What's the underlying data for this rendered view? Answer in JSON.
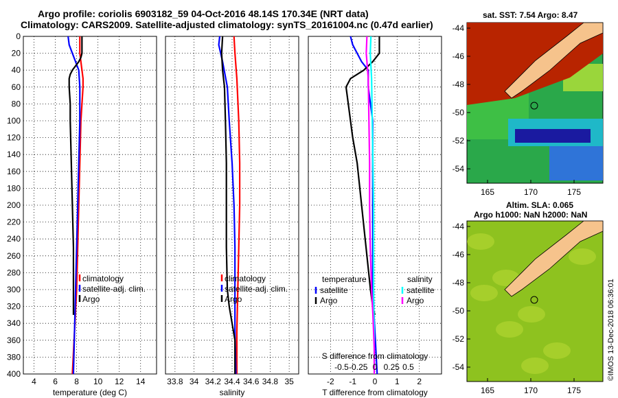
{
  "header": {
    "title_line1": "Argo profile: coriolis 6903182_59 04-Oct-2016 48.14S 170.34E (NRT data)",
    "title_line2": "Climatology: CARS2009. Satellite-adjusted climatology: synTS_20161004.nc (0.47d earlier)"
  },
  "chart_data": [
    {
      "type": "line",
      "panel": "temperature",
      "xlabel": "temperature (deg C)",
      "ylabel": "",
      "xlim": [
        3,
        15.5
      ],
      "ylim": [
        0,
        400
      ],
      "y_inverted": true,
      "xticks": [
        4,
        6,
        8,
        10,
        12,
        14
      ],
      "xtick_labels": [
        "4",
        "6",
        "8",
        "10",
        "12",
        "14"
      ],
      "yticks": [
        0,
        20,
        40,
        60,
        80,
        100,
        120,
        140,
        160,
        180,
        200,
        220,
        240,
        260,
        280,
        300,
        320,
        340,
        360,
        380,
        400
      ],
      "ytick_labels": [
        "0",
        "20",
        "40",
        "60",
        "80",
        "100",
        "120",
        "140",
        "160",
        "180",
        "200",
        "220",
        "240",
        "260",
        "280",
        "300",
        "320",
        "340",
        "360",
        "380",
        "400"
      ],
      "grid": true,
      "legend": {
        "position": "bottom-right",
        "entries": [
          "climatology",
          "satellite-adj. clim.",
          "Argo"
        ]
      },
      "series": [
        {
          "name": "climatology",
          "color": "#ff0000",
          "depth": [
            0,
            20,
            40,
            50,
            60,
            80,
            100,
            150,
            200,
            250,
            300,
            350,
            400
          ],
          "values": [
            8.3,
            8.3,
            8.5,
            8.6,
            8.6,
            8.5,
            8.4,
            8.3,
            8.2,
            8.1,
            8.0,
            7.8,
            7.6
          ]
        },
        {
          "name": "satellite-adj. clim.",
          "color": "#0000ff",
          "depth": [
            0,
            10,
            20,
            30,
            40,
            60,
            80,
            100,
            150,
            200,
            250,
            300,
            350,
            400
          ],
          "values": [
            7.2,
            7.3,
            7.6,
            7.9,
            8.2,
            8.3,
            8.3,
            8.3,
            8.2,
            8.1,
            8.0,
            7.9,
            7.8,
            7.7
          ]
        },
        {
          "name": "Argo",
          "color": "#000000",
          "depth": [
            0,
            10,
            20,
            25,
            30,
            35,
            40,
            45,
            50,
            60,
            80,
            100,
            150,
            200,
            250,
            300,
            330
          ],
          "values": [
            8.5,
            8.5,
            8.5,
            8.4,
            8.2,
            7.9,
            7.6,
            7.4,
            7.3,
            7.3,
            7.4,
            7.4,
            7.5,
            7.6,
            7.7,
            7.7,
            7.7
          ]
        }
      ]
    },
    {
      "type": "line",
      "panel": "salinity",
      "xlabel": "salinity",
      "xlim": [
        33.7,
        35.1
      ],
      "ylim": [
        0,
        400
      ],
      "y_inverted": true,
      "xticks": [
        33.8,
        34.0,
        34.2,
        34.4,
        34.6,
        34.8,
        35.0
      ],
      "xtick_labels": [
        "33.8",
        "34",
        "34.2",
        "34.4",
        "34.6",
        "34.8",
        "35"
      ],
      "grid": true,
      "legend": {
        "position": "bottom-right",
        "entries": [
          "climatology",
          "satellite-adj. clim.",
          "Argo"
        ]
      },
      "series": [
        {
          "name": "climatology",
          "color": "#ff0000",
          "depth": [
            0,
            20,
            50,
            100,
            150,
            200,
            250,
            300,
            350,
            400
          ],
          "values": [
            34.42,
            34.43,
            34.45,
            34.47,
            34.48,
            34.48,
            34.47,
            34.46,
            34.45,
            34.45
          ]
        },
        {
          "name": "satellite-adj. clim.",
          "color": "#0000ff",
          "depth": [
            0,
            10,
            30,
            60,
            100,
            150,
            200,
            250,
            300,
            350,
            400
          ],
          "values": [
            34.27,
            34.26,
            34.3,
            34.35,
            34.37,
            34.4,
            34.42,
            34.43,
            34.43,
            34.43,
            34.44
          ]
        },
        {
          "name": "Argo",
          "color": "#000000",
          "depth": [
            0,
            20,
            40,
            60,
            100,
            150,
            200,
            250,
            300,
            320,
            340,
            360,
            400
          ],
          "values": [
            34.3,
            34.29,
            34.3,
            34.32,
            34.33,
            34.34,
            34.34,
            34.34,
            34.35,
            34.37,
            34.4,
            34.43,
            34.43
          ]
        }
      ]
    },
    {
      "type": "line",
      "panel": "difference",
      "xlabel": "T difference from climatology",
      "xlabel_top": "S difference from climatology",
      "xlim": [
        -3,
        3
      ],
      "ylim": [
        0,
        400
      ],
      "y_inverted": true,
      "xticks": [
        -2,
        -1,
        0,
        1,
        2
      ],
      "xtick_labels": [
        "-2",
        "-1",
        "0",
        "1",
        "2"
      ],
      "s_xticks": [
        -0.5,
        -0.25,
        0,
        0.25,
        0.5
      ],
      "s_xtick_labels": [
        "-0.5",
        "-0.25",
        "0",
        "0.25",
        "0.5"
      ],
      "grid": true,
      "legend": {
        "temperature_title": "temperature",
        "salinity_title": "salinity",
        "temperature_entries": [
          "satellite",
          "Argo"
        ],
        "salinity_entries": [
          "satellite",
          "Argo"
        ]
      },
      "series": [
        {
          "name": "temperature satellite",
          "color": "#0000ff",
          "depth": [
            0,
            10,
            20,
            30,
            40,
            60,
            80,
            100,
            150,
            200,
            250,
            300,
            350,
            400
          ],
          "values": [
            -1.1,
            -1.0,
            -0.8,
            -0.6,
            -0.3,
            -0.3,
            -0.2,
            -0.1,
            -0.1,
            -0.1,
            -0.1,
            -0.1,
            0.0,
            0.1
          ]
        },
        {
          "name": "temperature Argo",
          "color": "#000000",
          "depth": [
            0,
            10,
            20,
            30,
            40,
            50,
            60,
            80,
            100,
            120,
            150,
            200,
            250,
            300,
            320,
            330
          ],
          "values": [
            0.2,
            0.2,
            0.2,
            -0.1,
            -0.5,
            -1.1,
            -1.3,
            -1.2,
            -1.1,
            -1.0,
            -0.8,
            -0.6,
            -0.4,
            -0.2,
            -0.1,
            0.0
          ]
        },
        {
          "name": "salinity satellite",
          "color": "#00ffff",
          "depth": [
            0,
            20,
            50,
            100,
            150,
            200,
            250,
            300,
            350,
            400
          ],
          "values": [
            -0.06,
            -0.07,
            -0.05,
            -0.04,
            -0.03,
            -0.02,
            -0.02,
            -0.02,
            -0.01,
            -0.01
          ]
        },
        {
          "name": "salinity Argo",
          "color": "#ff00ff",
          "depth": [
            0,
            20,
            50,
            100,
            150,
            200,
            250,
            300,
            330,
            350,
            370,
            400
          ],
          "values": [
            -0.12,
            -0.13,
            -0.1,
            -0.09,
            -0.08,
            -0.08,
            -0.07,
            -0.05,
            -0.03,
            -0.02,
            -0.01,
            -0.01
          ]
        }
      ]
    }
  ],
  "maps": {
    "sst_title": "sat. SST: 7.54 Argo: 8.47",
    "sla_title_line1": "Altim. SLA: 0.065",
    "sla_title_line2": "Argo h1000: NaN h2000: NaN",
    "lat_ticks": [
      "-44",
      "-46",
      "-48",
      "-50",
      "-52",
      "-54"
    ],
    "lon_ticks": [
      "165",
      "170",
      "175"
    ],
    "colors": {
      "land": "#f6c38c",
      "sst_warm": "#b82400",
      "sst_mid": "#2aa84a",
      "sst_cold": "#1a1aa0",
      "sla_bg": "#8ec21f"
    }
  },
  "stamp": "©IMOS 13-Dec-2018 06:36:01"
}
